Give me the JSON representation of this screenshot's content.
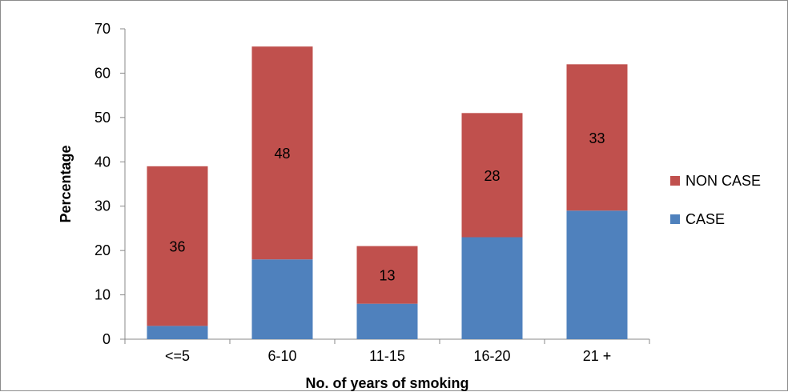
{
  "chart_data": {
    "type": "bar",
    "stacked": true,
    "title": "",
    "xlabel": "No. of years of smoking",
    "ylabel": "Percentage",
    "ylim": [
      0,
      70
    ],
    "ytick_step": 10,
    "categories": [
      "<=5",
      "6-10",
      "11-15",
      "16-20",
      "21 +"
    ],
    "series": [
      {
        "name": "CASE",
        "values": [
          3,
          18,
          8,
          23,
          29
        ],
        "color": "#4f81bd",
        "data_labels": [
          "",
          "",
          "",
          "",
          ""
        ]
      },
      {
        "name": "NON CASE",
        "values": [
          36,
          48,
          13,
          28,
          33
        ],
        "color": "#c0504d",
        "data_labels": [
          "36",
          "48",
          "13",
          "28",
          "33"
        ]
      }
    ],
    "legend": {
      "position": "right",
      "order": [
        "NON CASE",
        "CASE"
      ]
    },
    "grid": false
  }
}
